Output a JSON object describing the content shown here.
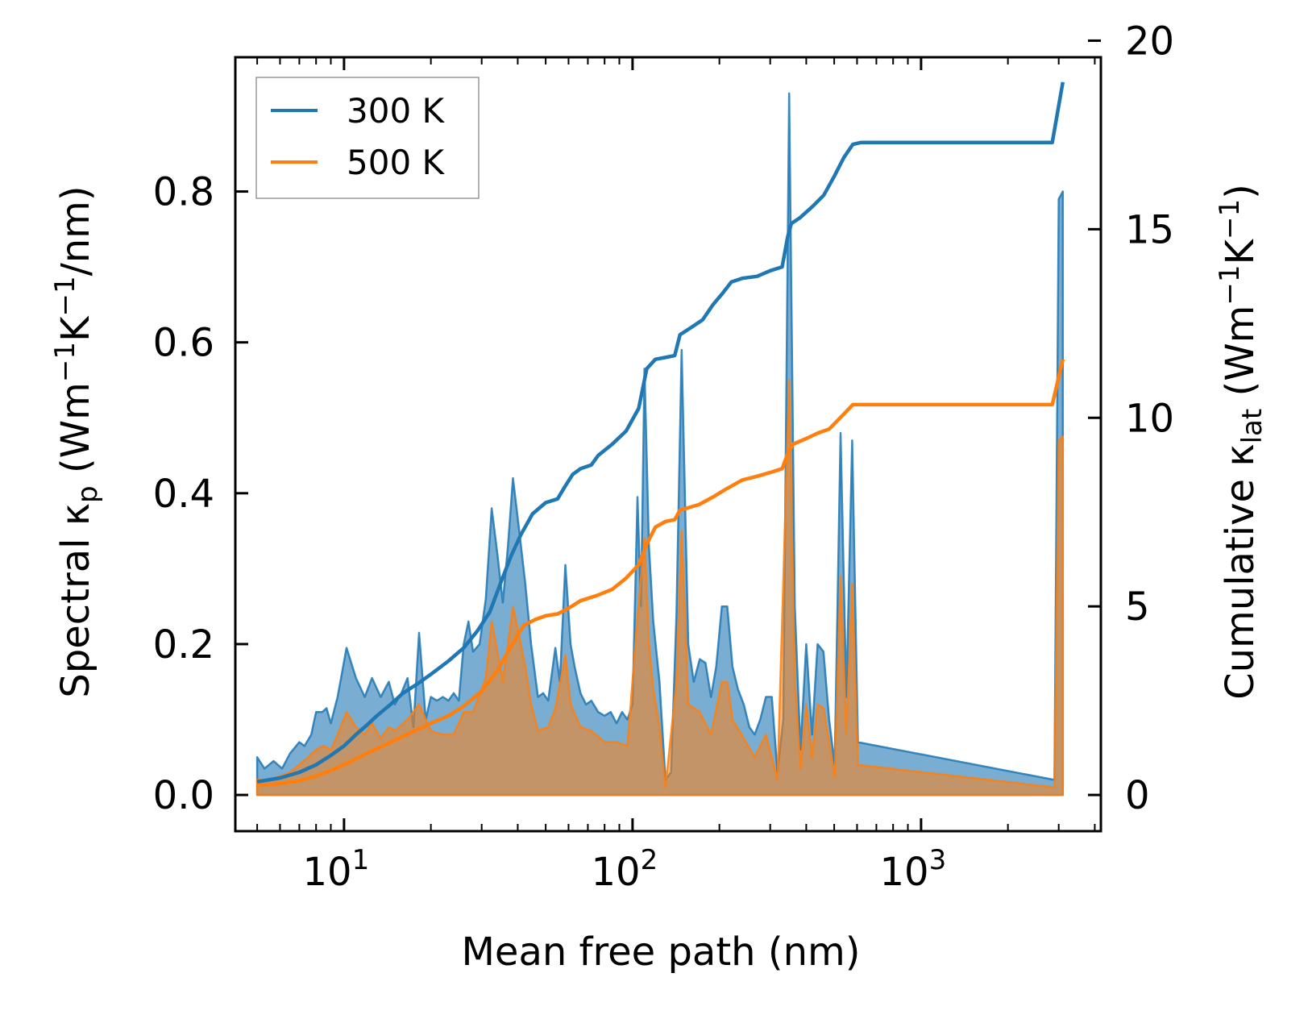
{
  "chart_data": {
    "type": "line",
    "title": "",
    "xlabel": "Mean free path (nm)",
    "ylabel_left": {
      "text": "Spectral κ",
      "sub": "p",
      "units_pre": " (Wm",
      "sup1": "−1",
      "mid": "K",
      "sup2": "−1",
      "units_post": "/nm)"
    },
    "ylabel_right": {
      "text": "Cumulative κ",
      "sub": "lat",
      "units_pre": " (Wm",
      "sup1": "−1",
      "mid": "K",
      "sup2": "−1",
      "units_post": ")"
    },
    "xscale": "log",
    "xlim": [
      4.2,
      4200
    ],
    "ylim_left": [
      -0.048,
      0.978
    ],
    "ylim_right": [
      -0.96,
      19.56
    ],
    "x_ticks": [
      {
        "value": 10,
        "base": "10",
        "exp": "1"
      },
      {
        "value": 100,
        "base": "10",
        "exp": "2"
      },
      {
        "value": 1000,
        "base": "10",
        "exp": "3"
      }
    ],
    "y_left_ticks": [
      "0.0",
      "0.2",
      "0.4",
      "0.6",
      "0.8"
    ],
    "y_left_tick_values": [
      0.0,
      0.2,
      0.4,
      0.6,
      0.8
    ],
    "y_right_ticks": [
      "0",
      "5",
      "10",
      "15",
      "20"
    ],
    "y_right_tick_values": [
      0,
      5,
      10,
      15,
      20
    ],
    "legend": {
      "position": "upper-left",
      "entries": [
        "300 K",
        "500 K"
      ]
    },
    "colors": {
      "300 K": "#1f77b4",
      "500 K": "#ff7f0e",
      "fill_300": "#1f77b4",
      "fill_500": "#ff7f0e"
    },
    "spectral": {
      "300 K": [
        [
          5,
          0.05
        ],
        [
          5.3,
          0.035
        ],
        [
          5.7,
          0.045
        ],
        [
          6.1,
          0.035
        ],
        [
          6.5,
          0.055
        ],
        [
          7,
          0.07
        ],
        [
          7.3,
          0.065
        ],
        [
          7.7,
          0.08
        ],
        [
          8,
          0.11
        ],
        [
          8.4,
          0.11
        ],
        [
          8.7,
          0.115
        ],
        [
          9,
          0.095
        ],
        [
          9.5,
          0.13
        ],
        [
          10.2,
          0.195
        ],
        [
          11,
          0.155
        ],
        [
          11.8,
          0.13
        ],
        [
          12.5,
          0.155
        ],
        [
          13.4,
          0.13
        ],
        [
          14.3,
          0.15
        ],
        [
          15,
          0.12
        ],
        [
          15.8,
          0.135
        ],
        [
          16.6,
          0.155
        ],
        [
          17.4,
          0.09
        ],
        [
          18.2,
          0.215
        ],
        [
          19.2,
          0.1
        ],
        [
          20,
          0.13
        ],
        [
          21,
          0.125
        ],
        [
          22,
          0.13
        ],
        [
          23,
          0.125
        ],
        [
          24,
          0.135
        ],
        [
          25,
          0.125
        ],
        [
          26,
          0.2
        ],
        [
          27,
          0.23
        ],
        [
          28,
          0.19
        ],
        [
          29.5,
          0.2
        ],
        [
          31,
          0.26
        ],
        [
          32.5,
          0.38
        ],
        [
          34,
          0.32
        ],
        [
          35.5,
          0.255
        ],
        [
          37,
          0.33
        ],
        [
          38.5,
          0.42
        ],
        [
          40.5,
          0.35
        ],
        [
          42.5,
          0.28
        ],
        [
          44.5,
          0.2
        ],
        [
          47,
          0.13
        ],
        [
          49,
          0.135
        ],
        [
          51,
          0.125
        ],
        [
          54,
          0.195
        ],
        [
          56,
          0.15
        ],
        [
          58.5,
          0.305
        ],
        [
          61,
          0.2
        ],
        [
          63,
          0.17
        ],
        [
          66,
          0.135
        ],
        [
          69,
          0.12
        ],
        [
          72,
          0.125
        ],
        [
          76,
          0.11
        ],
        [
          80,
          0.105
        ],
        [
          84,
          0.11
        ],
        [
          88,
          0.095
        ],
        [
          92,
          0.11
        ],
        [
          96,
          0.1
        ],
        [
          100,
          0.12
        ],
        [
          104,
          0.395
        ],
        [
          107,
          0.25
        ],
        [
          110,
          0.565
        ],
        [
          114,
          0.33
        ],
        [
          118,
          0.23
        ],
        [
          124,
          0.15
        ],
        [
          130,
          0.02
        ],
        [
          136,
          0.03
        ],
        [
          142,
          0.24
        ],
        [
          148,
          0.59
        ],
        [
          156,
          0.2
        ],
        [
          163,
          0.15
        ],
        [
          171,
          0.18
        ],
        [
          179,
          0.175
        ],
        [
          187,
          0.13
        ],
        [
          195,
          0.17
        ],
        [
          204,
          0.25
        ],
        [
          213,
          0.25
        ],
        [
          222,
          0.17
        ],
        [
          232,
          0.14
        ],
        [
          243,
          0.12
        ],
        [
          254,
          0.09
        ],
        [
          265,
          0.08
        ],
        [
          277,
          0.1
        ],
        [
          290,
          0.13
        ],
        [
          304,
          0.13
        ],
        [
          318,
          0.03
        ],
        [
          333,
          0.1
        ],
        [
          349,
          0.93
        ],
        [
          365,
          0.25
        ],
        [
          382,
          0.06
        ],
        [
          400,
          0.2
        ],
        [
          419,
          0.08
        ],
        [
          438,
          0.2
        ],
        [
          459,
          0.19
        ],
        [
          480,
          0.1
        ],
        [
          502,
          0.04
        ],
        [
          526,
          0.48
        ],
        [
          551,
          0.13
        ],
        [
          577,
          0.47
        ],
        [
          604,
          0.07
        ],
        [
          2900,
          0.02
        ],
        [
          3000,
          0.79
        ],
        [
          3100,
          0.8
        ]
      ],
      "500 K": [
        [
          5,
          0.02
        ],
        [
          5.5,
          0.02
        ],
        [
          6,
          0.025
        ],
        [
          6.5,
          0.03
        ],
        [
          7,
          0.04
        ],
        [
          7.5,
          0.05
        ],
        [
          8,
          0.06
        ],
        [
          8.5,
          0.065
        ],
        [
          9,
          0.06
        ],
        [
          9.5,
          0.08
        ],
        [
          10.2,
          0.11
        ],
        [
          11,
          0.09
        ],
        [
          11.8,
          0.08
        ],
        [
          12.5,
          0.095
        ],
        [
          13.4,
          0.075
        ],
        [
          14.3,
          0.09
        ],
        [
          15,
          0.085
        ],
        [
          16.6,
          0.1
        ],
        [
          18.2,
          0.12
        ],
        [
          20,
          0.085
        ],
        [
          22,
          0.08
        ],
        [
          24,
          0.08
        ],
        [
          26,
          0.11
        ],
        [
          28,
          0.11
        ],
        [
          31,
          0.155
        ],
        [
          32.5,
          0.23
        ],
        [
          34,
          0.19
        ],
        [
          35.5,
          0.15
        ],
        [
          37,
          0.2
        ],
        [
          38.5,
          0.25
        ],
        [
          40.5,
          0.21
        ],
        [
          42.5,
          0.17
        ],
        [
          44.5,
          0.12
        ],
        [
          47,
          0.085
        ],
        [
          51,
          0.09
        ],
        [
          54,
          0.115
        ],
        [
          58.5,
          0.185
        ],
        [
          61,
          0.12
        ],
        [
          66,
          0.09
        ],
        [
          72,
          0.085
        ],
        [
          80,
          0.07
        ],
        [
          88,
          0.07
        ],
        [
          96,
          0.065
        ],
        [
          104,
          0.235
        ],
        [
          110,
          0.34
        ],
        [
          114,
          0.2
        ],
        [
          118,
          0.14
        ],
        [
          124,
          0.09
        ],
        [
          130,
          0.01
        ],
        [
          142,
          0.15
        ],
        [
          148,
          0.35
        ],
        [
          156,
          0.12
        ],
        [
          171,
          0.11
        ],
        [
          187,
          0.08
        ],
        [
          204,
          0.15
        ],
        [
          213,
          0.15
        ],
        [
          222,
          0.1
        ],
        [
          243,
          0.075
        ],
        [
          265,
          0.05
        ],
        [
          290,
          0.08
        ],
        [
          318,
          0.02
        ],
        [
          349,
          0.55
        ],
        [
          365,
          0.15
        ],
        [
          382,
          0.035
        ],
        [
          400,
          0.12
        ],
        [
          419,
          0.05
        ],
        [
          438,
          0.12
        ],
        [
          459,
          0.115
        ],
        [
          502,
          0.025
        ],
        [
          526,
          0.29
        ],
        [
          551,
          0.08
        ],
        [
          577,
          0.28
        ],
        [
          604,
          0.04
        ],
        [
          2900,
          0.01
        ],
        [
          3000,
          0.47
        ],
        [
          3100,
          0.475
        ]
      ]
    },
    "cumulative": {
      "300 K": [
        [
          5,
          0.35
        ],
        [
          6,
          0.45
        ],
        [
          7,
          0.6
        ],
        [
          8,
          0.8
        ],
        [
          9,
          1.05
        ],
        [
          10,
          1.3
        ],
        [
          11,
          1.6
        ],
        [
          12,
          1.85
        ],
        [
          13,
          2.1
        ],
        [
          14.5,
          2.4
        ],
        [
          16,
          2.7
        ],
        [
          18,
          2.95
        ],
        [
          20,
          3.2
        ],
        [
          23,
          3.55
        ],
        [
          26,
          3.9
        ],
        [
          29,
          4.35
        ],
        [
          32,
          4.85
        ],
        [
          35,
          5.65
        ],
        [
          38,
          6.35
        ],
        [
          41,
          6.9
        ],
        [
          45,
          7.45
        ],
        [
          50,
          7.75
        ],
        [
          55,
          7.85
        ],
        [
          58,
          8.15
        ],
        [
          62,
          8.5
        ],
        [
          66,
          8.65
        ],
        [
          72,
          8.75
        ],
        [
          76,
          9.0
        ],
        [
          85,
          9.3
        ],
        [
          95,
          9.65
        ],
        [
          105,
          10.25
        ],
        [
          112,
          11.3
        ],
        [
          120,
          11.55
        ],
        [
          130,
          11.6
        ],
        [
          140,
          11.65
        ],
        [
          146,
          12.2
        ],
        [
          160,
          12.4
        ],
        [
          175,
          12.6
        ],
        [
          190,
          13.0
        ],
        [
          205,
          13.3
        ],
        [
          220,
          13.6
        ],
        [
          240,
          13.7
        ],
        [
          270,
          13.75
        ],
        [
          300,
          13.9
        ],
        [
          330,
          14.0
        ],
        [
          345,
          14.8
        ],
        [
          355,
          15.15
        ],
        [
          380,
          15.3
        ],
        [
          420,
          15.6
        ],
        [
          460,
          15.9
        ],
        [
          500,
          16.4
        ],
        [
          540,
          16.9
        ],
        [
          580,
          17.25
        ],
        [
          620,
          17.3
        ],
        [
          1000,
          17.3
        ],
        [
          2000,
          17.3
        ],
        [
          2850,
          17.3
        ],
        [
          3100,
          18.9
        ]
      ],
      "500 K": [
        [
          5,
          0.25
        ],
        [
          6,
          0.3
        ],
        [
          7,
          0.38
        ],
        [
          8,
          0.5
        ],
        [
          9,
          0.65
        ],
        [
          10,
          0.8
        ],
        [
          12,
          1.1
        ],
        [
          14.5,
          1.4
        ],
        [
          17,
          1.65
        ],
        [
          20,
          1.9
        ],
        [
          23,
          2.1
        ],
        [
          26,
          2.35
        ],
        [
          30,
          2.75
        ],
        [
          34,
          3.3
        ],
        [
          38,
          3.95
        ],
        [
          42,
          4.5
        ],
        [
          46,
          4.65
        ],
        [
          50,
          4.75
        ],
        [
          55,
          4.8
        ],
        [
          60,
          4.95
        ],
        [
          66,
          5.15
        ],
        [
          76,
          5.3
        ],
        [
          85,
          5.45
        ],
        [
          95,
          5.75
        ],
        [
          105,
          6.1
        ],
        [
          112,
          6.65
        ],
        [
          120,
          7.1
        ],
        [
          130,
          7.25
        ],
        [
          140,
          7.3
        ],
        [
          146,
          7.55
        ],
        [
          170,
          7.7
        ],
        [
          190,
          7.9
        ],
        [
          210,
          8.1
        ],
        [
          240,
          8.35
        ],
        [
          270,
          8.45
        ],
        [
          300,
          8.55
        ],
        [
          330,
          8.65
        ],
        [
          345,
          9.05
        ],
        [
          360,
          9.3
        ],
        [
          400,
          9.45
        ],
        [
          440,
          9.6
        ],
        [
          480,
          9.7
        ],
        [
          540,
          10.1
        ],
        [
          580,
          10.35
        ],
        [
          1000,
          10.35
        ],
        [
          2000,
          10.35
        ],
        [
          2850,
          10.35
        ],
        [
          3100,
          11.55
        ]
      ]
    }
  }
}
